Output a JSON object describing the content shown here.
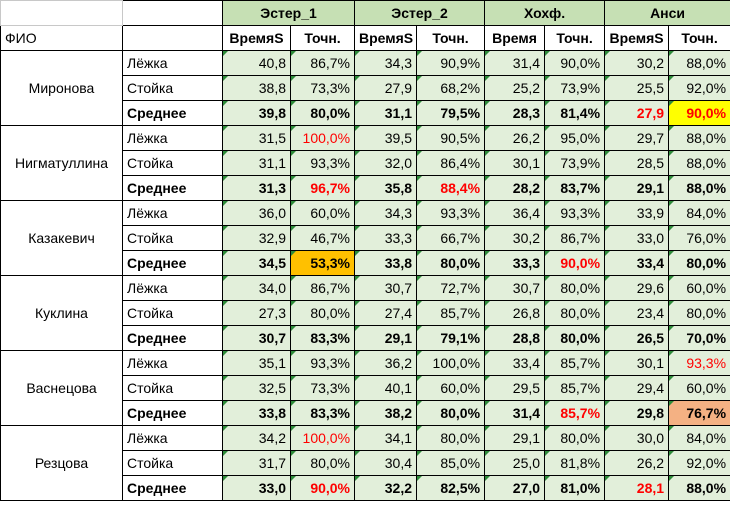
{
  "header": {
    "groups": [
      "Эстер_1",
      "Эстер_2",
      "Хохф.",
      "Анси"
    ],
    "fio_label": "ФИО",
    "subheaders": [
      "ВремяS",
      "Точн.",
      "ВремяS",
      "Точн.",
      "Время",
      "Точн.",
      "ВремяS",
      "Точн."
    ]
  },
  "people": [
    {
      "name": "Миронова",
      "rows": [
        {
          "kind": "Лёжка",
          "values": [
            "40,8",
            "86,7%",
            "34,3",
            "90,9%",
            "31,4",
            "90,0%",
            "30,2",
            "88,0%"
          ]
        },
        {
          "kind": "Стойка",
          "values": [
            "38,8",
            "73,3%",
            "27,9",
            "68,2%",
            "25,2",
            "73,9%",
            "25,5",
            "92,0%"
          ]
        },
        {
          "kind": "Среднее",
          "values": [
            "39,8",
            "80,0%",
            "31,1",
            "79,5%",
            "28,3",
            "81,4%",
            "27,9",
            "90,0%"
          ]
        }
      ]
    },
    {
      "name": "Нигматуллина",
      "rows": [
        {
          "kind": "Лёжка",
          "values": [
            "31,5",
            "100,0%",
            "39,5",
            "90,5%",
            "26,2",
            "95,0%",
            "29,7",
            "88,0%"
          ]
        },
        {
          "kind": "Стойка",
          "values": [
            "31,1",
            "93,3%",
            "32,0",
            "86,4%",
            "30,1",
            "73,9%",
            "28,5",
            "88,0%"
          ]
        },
        {
          "kind": "Среднее",
          "values": [
            "31,3",
            "96,7%",
            "35,8",
            "88,4%",
            "28,2",
            "83,7%",
            "29,1",
            "88,0%"
          ]
        }
      ]
    },
    {
      "name": "Казакевич",
      "rows": [
        {
          "kind": "Лёжка",
          "values": [
            "36,0",
            "60,0%",
            "34,3",
            "93,3%",
            "36,4",
            "93,3%",
            "33,9",
            "84,0%"
          ]
        },
        {
          "kind": "Стойка",
          "values": [
            "32,9",
            "46,7%",
            "33,3",
            "66,7%",
            "30,2",
            "86,7%",
            "33,0",
            "76,0%"
          ]
        },
        {
          "kind": "Среднее",
          "values": [
            "34,5",
            "53,3%",
            "33,8",
            "80,0%",
            "33,3",
            "90,0%",
            "33,4",
            "80,0%"
          ]
        }
      ]
    },
    {
      "name": "Куклина",
      "rows": [
        {
          "kind": "Лёжка",
          "values": [
            "34,0",
            "86,7%",
            "30,7",
            "72,7%",
            "30,7",
            "80,0%",
            "29,6",
            "60,0%"
          ]
        },
        {
          "kind": "Стойка",
          "values": [
            "27,3",
            "80,0%",
            "27,4",
            "85,7%",
            "26,8",
            "80,0%",
            "23,4",
            "80,0%"
          ]
        },
        {
          "kind": "Среднее",
          "values": [
            "30,7",
            "83,3%",
            "29,1",
            "79,1%",
            "28,8",
            "80,0%",
            "26,5",
            "70,0%"
          ]
        }
      ]
    },
    {
      "name": "Васнецова",
      "rows": [
        {
          "kind": "Лёжка",
          "values": [
            "35,1",
            "93,3%",
            "36,2",
            "100,0%",
            "33,4",
            "85,7%",
            "30,1",
            "93,3%"
          ]
        },
        {
          "kind": "Стойка",
          "values": [
            "32,5",
            "73,3%",
            "40,1",
            "60,0%",
            "29,5",
            "85,7%",
            "29,4",
            "60,0%"
          ]
        },
        {
          "kind": "Среднее",
          "values": [
            "33,8",
            "83,3%",
            "38,2",
            "80,0%",
            "31,4",
            "85,7%",
            "29,8",
            "76,7%"
          ]
        }
      ]
    },
    {
      "name": "Резцова",
      "rows": [
        {
          "kind": "Лёжка",
          "values": [
            "34,2",
            "100,0%",
            "34,1",
            "80,0%",
            "29,1",
            "80,0%",
            "30,0",
            "84,0%"
          ]
        },
        {
          "kind": "Стойка",
          "values": [
            "31,7",
            "80,0%",
            "30,4",
            "85,0%",
            "25,0",
            "81,8%",
            "26,2",
            "92,0%"
          ]
        },
        {
          "kind": "Среднее",
          "values": [
            "33,0",
            "90,0%",
            "32,2",
            "82,5%",
            "27,0",
            "81,0%",
            "28,1",
            "88,0%"
          ]
        }
      ]
    }
  ],
  "highlights": [
    {
      "p": 0,
      "r": 2,
      "c": 6,
      "style": "red"
    },
    {
      "p": 0,
      "r": 2,
      "c": 7,
      "style": "red-yellow"
    },
    {
      "p": 1,
      "r": 0,
      "c": 1,
      "style": "red"
    },
    {
      "p": 1,
      "r": 2,
      "c": 1,
      "style": "red"
    },
    {
      "p": 1,
      "r": 2,
      "c": 3,
      "style": "red"
    },
    {
      "p": 2,
      "r": 2,
      "c": 1,
      "style": "orange"
    },
    {
      "p": 2,
      "r": 2,
      "c": 5,
      "style": "red"
    },
    {
      "p": 4,
      "r": 0,
      "c": 7,
      "style": "red"
    },
    {
      "p": 4,
      "r": 2,
      "c": 5,
      "style": "red"
    },
    {
      "p": 4,
      "r": 2,
      "c": 7,
      "style": "salmon"
    },
    {
      "p": 5,
      "r": 0,
      "c": 1,
      "style": "red"
    },
    {
      "p": 5,
      "r": 2,
      "c": 1,
      "style": "red"
    },
    {
      "p": 5,
      "r": 2,
      "c": 6,
      "style": "red"
    }
  ],
  "colors": {
    "header_green": "#c6e0b4",
    "cell_green": "#e2efda",
    "red_text": "#ff0000",
    "yellow": "#ffff00",
    "orange": "#ffc000",
    "salmon": "#f4b183"
  }
}
